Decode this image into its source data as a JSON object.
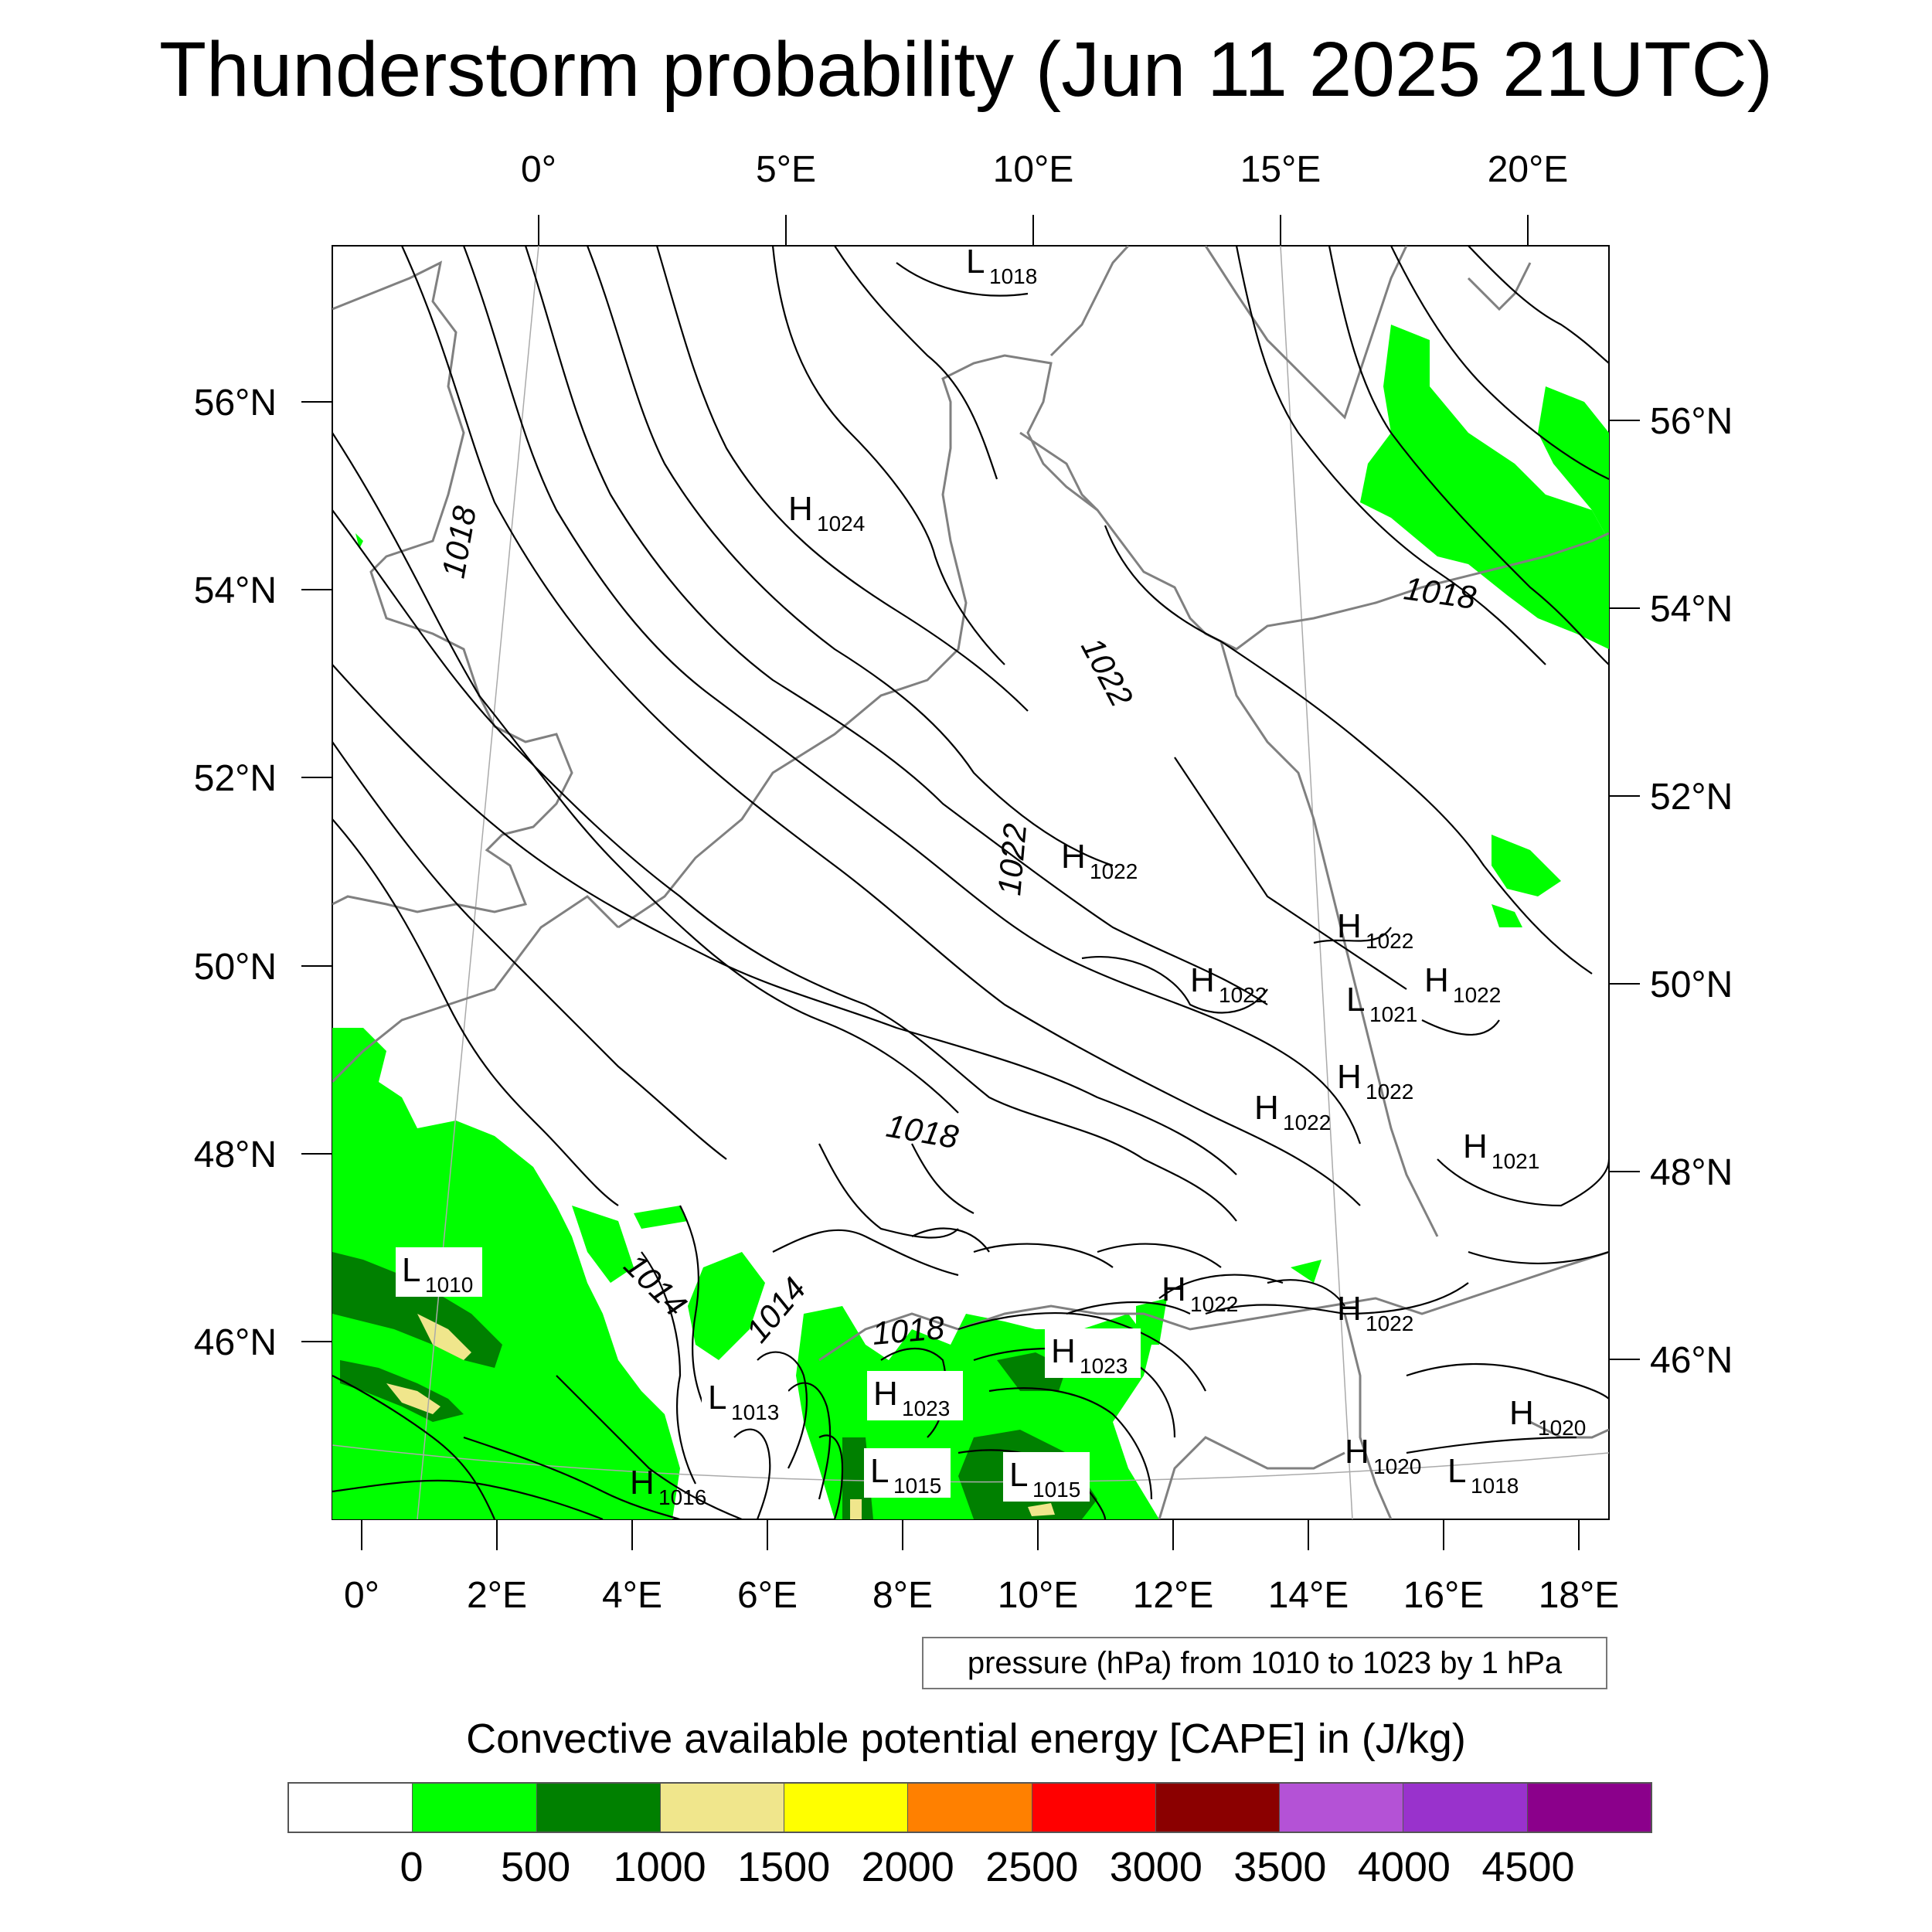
{
  "title": "Thunderstorm probability (Jun 11 2025 21UTC)",
  "top_axis_labels": [
    "0°",
    "5°E",
    "10°E",
    "15°E",
    "20°E"
  ],
  "bottom_axis_labels": [
    "0°",
    "2°E",
    "4°E",
    "6°E",
    "8°E",
    "10°E",
    "12°E",
    "14°E",
    "16°E",
    "18°E"
  ],
  "left_axis_labels": [
    "56°N",
    "54°N",
    "52°N",
    "50°N",
    "48°N",
    "46°N"
  ],
  "right_axis_labels": [
    "56°N",
    "54°N",
    "52°N",
    "50°N",
    "48°N",
    "46°N"
  ],
  "pressure_centers": [
    {
      "type": "L",
      "value": "1018"
    },
    {
      "type": "H",
      "value": "1024"
    },
    {
      "type": "H",
      "value": "1022"
    },
    {
      "type": "H",
      "value": "1022"
    },
    {
      "type": "H",
      "value": "1022"
    },
    {
      "type": "L",
      "value": "1021"
    },
    {
      "type": "H",
      "value": "1022"
    },
    {
      "type": "H",
      "value": "1022"
    },
    {
      "type": "H",
      "value": "1022"
    },
    {
      "type": "H",
      "value": "1021"
    },
    {
      "type": "L",
      "value": "1010"
    },
    {
      "type": "H",
      "value": "1022"
    },
    {
      "type": "H",
      "value": "1022"
    },
    {
      "type": "H",
      "value": "1023"
    },
    {
      "type": "L",
      "value": "1013"
    },
    {
      "type": "H",
      "value": "1023"
    },
    {
      "type": "H",
      "value": "1020"
    },
    {
      "type": "L",
      "value": "1015"
    },
    {
      "type": "L",
      "value": "1015"
    },
    {
      "type": "H",
      "value": "1016"
    },
    {
      "type": "H",
      "value": "1020"
    },
    {
      "type": "L",
      "value": "1018"
    }
  ],
  "contour_labels": [
    "1018",
    "1018",
    "1022",
    "1022",
    "1018",
    "1014",
    "1014",
    "1018"
  ],
  "isobar_note": "pressure (hPa) from 1010 to 1023 by 1 hPa",
  "colorbar": {
    "title": "Convective available potential energy [CAPE] in (J/kg)",
    "labels": [
      "0",
      "500",
      "1000",
      "1500",
      "2000",
      "2500",
      "3000",
      "3500",
      "4000",
      "4500"
    ],
    "colors": [
      "#ffffff",
      "#00ff00",
      "#008000",
      "#f0e68c",
      "#ffff00",
      "#ff8000",
      "#ff0000",
      "#8b0000",
      "#b452d6",
      "#9932cc",
      "#8b008b"
    ]
  },
  "colors": {
    "cape_low": "#00ff00",
    "cape_mid": "#008000",
    "cape_high": "#f0e68c",
    "coast": "#808080",
    "isobar": "#000000"
  }
}
